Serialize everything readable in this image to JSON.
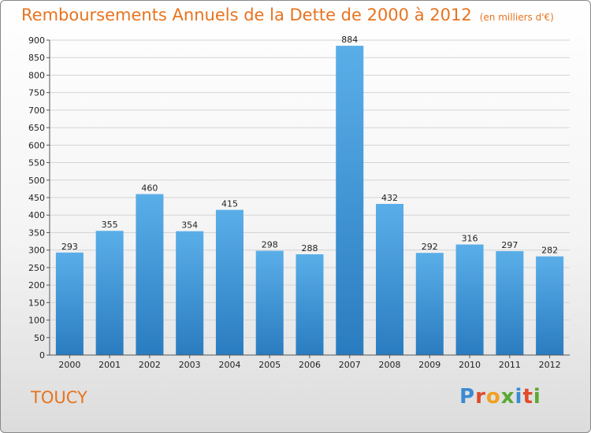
{
  "header": {
    "title": "Remboursements Annuels de la Dette de 2000 à 2012",
    "unit": "(en milliers d'€)"
  },
  "region": "TOUCY",
  "logo": {
    "text": "Proxiti",
    "colors": [
      "#3a8bd1",
      "#e04a2a",
      "#f0a020",
      "#5aa832",
      "#3a8bd1",
      "#e04a2a",
      "#5aa832"
    ]
  },
  "colors": {
    "bar_top": "#5aaee8",
    "bar_bottom": "#2a7cc0",
    "accent": "#e8731e"
  },
  "chart_data": {
    "type": "bar",
    "categories": [
      "2000",
      "2001",
      "2002",
      "2003",
      "2004",
      "2005",
      "2006",
      "2007",
      "2008",
      "2009",
      "2010",
      "2011",
      "2012"
    ],
    "values": [
      293,
      355,
      460,
      354,
      415,
      298,
      288,
      884,
      432,
      292,
      316,
      297,
      282
    ],
    "ylim": [
      0,
      900
    ],
    "yticks": [
      0,
      50,
      100,
      150,
      200,
      250,
      300,
      350,
      400,
      450,
      500,
      550,
      600,
      650,
      700,
      750,
      800,
      850,
      900
    ],
    "grid": true,
    "data_labels": true
  }
}
